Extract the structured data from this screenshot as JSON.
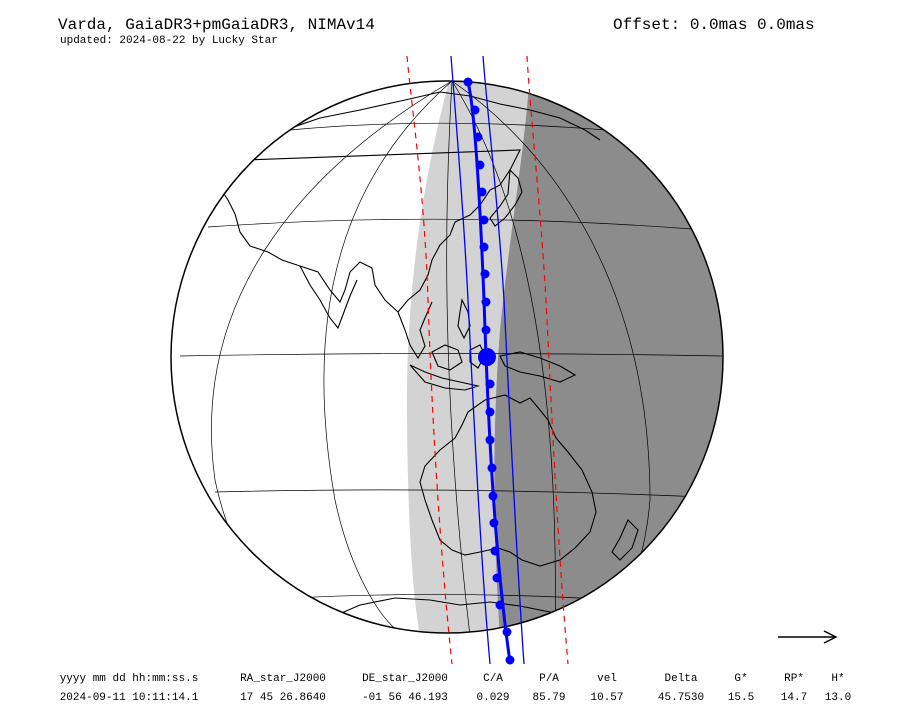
{
  "header": {
    "title": "Varda, GaiaDR3+pmGaiaDR3, NIMAv14",
    "subtitle": "updated: 2024-08-22 by Lucky Star",
    "offset": "Offset: 0.0mas 0.0mas"
  },
  "colors": {
    "shadow": "#8c8c8c",
    "twilight": "#d3d3d3",
    "path": "#0000ff",
    "limits": "#ff0000",
    "land_outline": "#000000",
    "ocean": "#ffffff"
  },
  "icons": {
    "direction": "arrow-right-icon"
  },
  "table": {
    "headers": [
      "yyyy mm dd hh:mm:ss.s",
      "RA_star_J2000",
      "DE_star_J2000",
      "C/A",
      "P/A",
      "vel",
      "Delta",
      "G*",
      "RP*",
      "H*"
    ],
    "values": [
      "2024-09-11 10:11:14.1",
      "17 45 26.8640",
      "-01 56 46.193",
      "0.029",
      "85.79",
      "10.57",
      "45.7530",
      "15.5",
      "14.7",
      "13.0"
    ]
  }
}
